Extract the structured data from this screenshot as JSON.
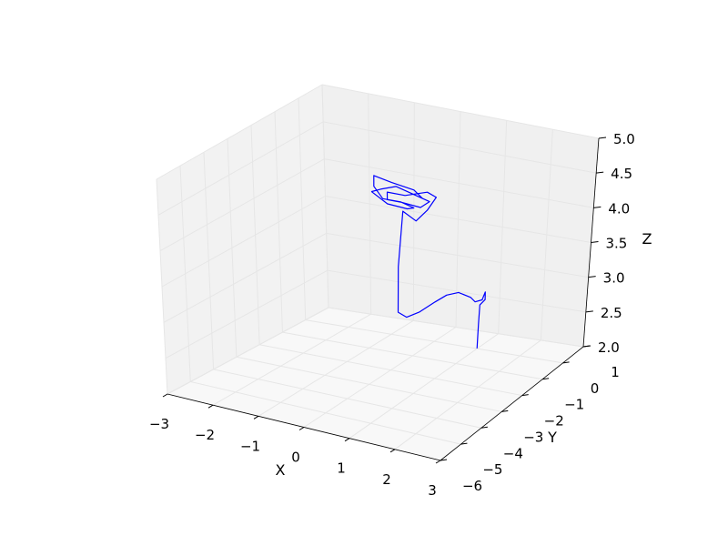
{
  "chart_data": {
    "type": "line",
    "projection": "3d",
    "grid": true,
    "colors": {
      "series": "#0000ff",
      "pane_back": "#f0f0f0",
      "pane_side": "#f2f2f2",
      "pane_floor": "#f8f8f8",
      "grid": "#e6e6e6"
    },
    "axes": {
      "x": {
        "label": "X",
        "lim": [
          -3,
          3
        ],
        "ticks": [
          -3,
          -2,
          -1,
          0,
          1,
          2,
          3
        ],
        "tick_labels": [
          "−3",
          "−2",
          "−1",
          "0",
          "1",
          "2",
          "3"
        ]
      },
      "y": {
        "label": "Y",
        "lim": [
          -6,
          1
        ],
        "ticks": [
          -6,
          -5,
          -4,
          -3,
          -2,
          -1,
          0,
          1
        ],
        "tick_labels": [
          "−6",
          "−5",
          "−4",
          "−3",
          "−2",
          "−1",
          "0",
          "1"
        ]
      },
      "z": {
        "label": "Z",
        "lim": [
          2.0,
          5.0
        ],
        "ticks": [
          2.0,
          2.5,
          3.0,
          3.5,
          4.0,
          4.5,
          5.0
        ],
        "tick_labels": [
          "2.0",
          "2.5",
          "3.0",
          "3.5",
          "4.0",
          "4.5",
          "5.0"
        ]
      }
    },
    "series": [
      {
        "x": [
          2.1,
          2.1,
          2.15,
          2.3,
          2.25,
          2.15,
          2.0,
          1.8,
          1.5,
          1.0,
          0.5,
          0.0,
          -0.5,
          -0.9,
          -1.1,
          -1.15,
          -1.1,
          -0.9,
          -0.7,
          -0.5,
          -0.8,
          -1.2,
          -1.5,
          -1.6,
          -1.4,
          -1.0,
          -0.7,
          -0.9,
          -1.3,
          -1.7,
          -2.0,
          -2.1,
          -1.8,
          -1.3,
          -1.0,
          -1.2,
          -1.6,
          -1.9,
          -2.0,
          -1.7,
          -1.2,
          -0.9
        ],
        "y": [
          -2.4,
          -2.4,
          -2.5,
          -2.6,
          -2.5,
          -2.4,
          -2.4,
          -2.0,
          -1.5,
          -1.0,
          -0.5,
          0.0,
          0.3,
          0.5,
          0.5,
          0.6,
          0.7,
          0.9,
          1.0,
          1.0,
          1.2,
          1.0,
          0.8,
          1.0,
          1.2,
          1.3,
          1.1,
          0.9,
          0.8,
          0.9,
          1.1,
          1.3,
          1.4,
          1.3,
          1.0,
          0.8,
          0.8,
          1.0,
          1.2,
          1.4,
          1.4,
          1.2
        ],
        "z": [
          2.65,
          3.0,
          3.3,
          3.42,
          3.5,
          3.35,
          3.3,
          3.2,
          3.1,
          3.0,
          2.8,
          2.55,
          2.3,
          2.15,
          2.2,
          2.8,
          3.55,
          3.4,
          3.55,
          3.75,
          3.75,
          3.7,
          3.75,
          3.6,
          3.55,
          3.5,
          3.65,
          3.75,
          3.85,
          3.75,
          3.65,
          3.6,
          3.45,
          3.45,
          3.55,
          3.65,
          3.65,
          3.75,
          3.85,
          3.75,
          3.7,
          3.65
        ]
      }
    ]
  }
}
